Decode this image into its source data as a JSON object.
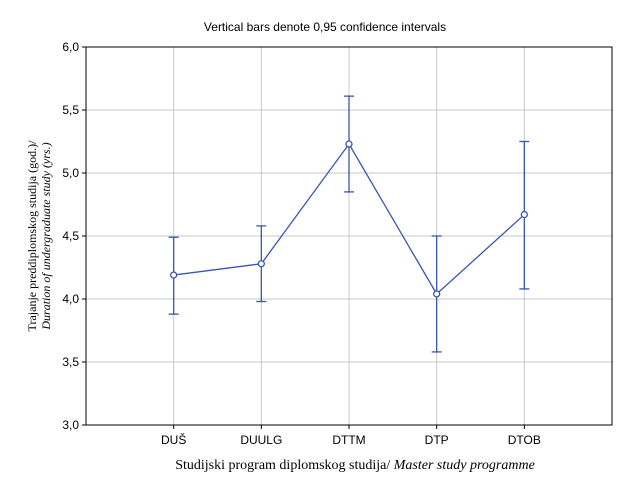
{
  "chart_data": {
    "type": "line",
    "title": "Vertical bars denote 0,95 confidence intervals",
    "categories": [
      "DUŠ",
      "DUULG",
      "DTTM",
      "DTP",
      "DTOB"
    ],
    "means": [
      4.19,
      4.28,
      5.23,
      4.04,
      4.67
    ],
    "ci_lower": [
      3.88,
      3.98,
      4.85,
      3.58,
      4.08
    ],
    "ci_upper": [
      4.49,
      4.58,
      5.61,
      4.5,
      5.25
    ],
    "ylim": [
      3.0,
      6.0
    ],
    "yticks": [
      "3,0",
      "3,5",
      "4,0",
      "4,5",
      "5,0",
      "5,5",
      "6,0"
    ],
    "xlabel_regular": "Studijski program diplomskog studija/ ",
    "xlabel_italic": "Master study programme",
    "ylabel_line1": "Trajanje preddiplomskog studija (god.)/",
    "ylabel_line2": "Duration of undergraduate study (yrs.)",
    "grid": true,
    "line_color": "#3a55b0"
  }
}
